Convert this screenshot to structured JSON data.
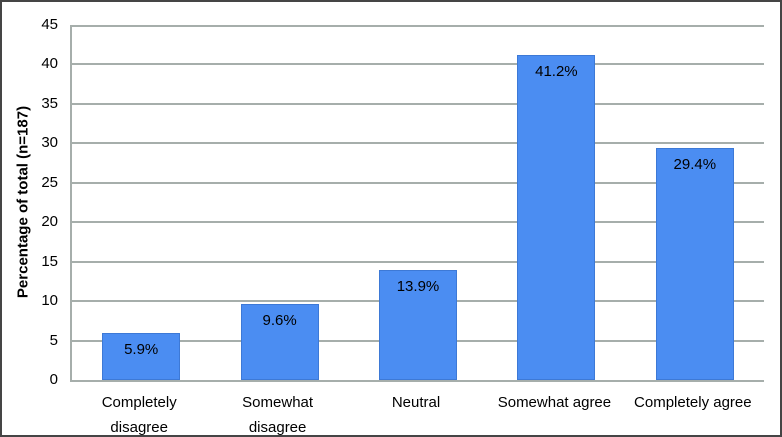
{
  "figure": {
    "background": "#ffffff",
    "border_color": "#454545"
  },
  "chart_data": {
    "type": "bar",
    "title": "",
    "categories": [
      "Completely\ndisagree",
      "Somewhat\ndisagree",
      "Neutral",
      "Somewhat agree",
      "Completely agree"
    ],
    "values": [
      5.9,
      9.6,
      13.9,
      41.2,
      29.4
    ],
    "data_labels": [
      "5.9%",
      "9.6%",
      "13.9%",
      "41.2%",
      "29.4%"
    ],
    "xlabel": "",
    "ylabel": "Percentage of total (n=187)",
    "sample_size_shown": "n=187",
    "ylim": [
      0,
      45
    ],
    "yticks": [
      0,
      5,
      10,
      15,
      20,
      25,
      30,
      35,
      40,
      45
    ],
    "grid": "horizontal",
    "legend": "none",
    "bar_color": "#4b8df2",
    "bar_border_color": "#3d79d6",
    "gridline_color": "#a6aeab",
    "axis_color": "#a6aeab",
    "text_color": "#000000"
  }
}
